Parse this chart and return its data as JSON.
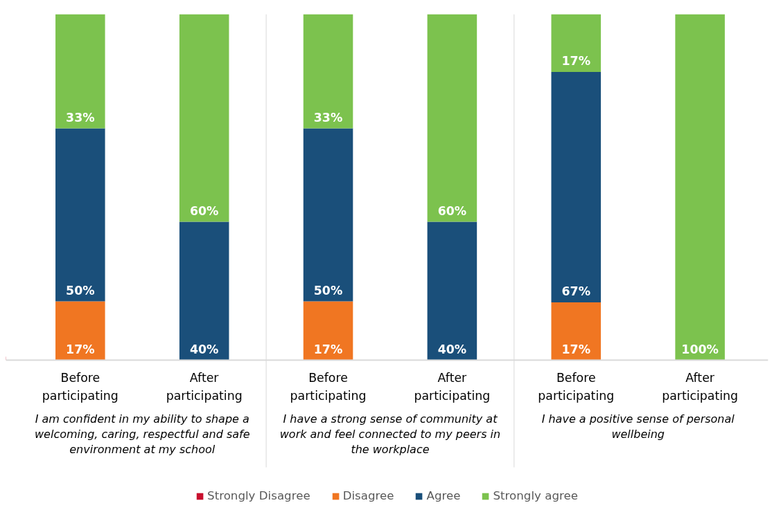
{
  "chart_data": {
    "type": "bar",
    "stacked": true,
    "legend": "bottom",
    "categories": [
      "Before participating",
      "After participating",
      "Before participating",
      "After participating",
      "Before participating",
      "After participating"
    ],
    "series": [
      {
        "name": "Strongly Disagree",
        "color": "#c8102e",
        "values": [
          null,
          null,
          null,
          null,
          null,
          null
        ],
        "value_labels": [
          null,
          null,
          null,
          null,
          null,
          null
        ]
      },
      {
        "name": "Disagree",
        "color": "#f07622",
        "values": [
          17,
          null,
          17,
          null,
          16.7,
          null
        ],
        "value_labels": [
          "17%",
          null,
          "17%",
          null,
          "17%",
          null
        ]
      },
      {
        "name": "Agree",
        "color": "#1a4f7a",
        "values": [
          50,
          40,
          50,
          40,
          66.6,
          null
        ],
        "value_labels": [
          "50%",
          "40%",
          "50%",
          "40%",
          "67%",
          null
        ]
      },
      {
        "name": "Strongly agree",
        "color": "#7cc24e",
        "values": [
          33,
          60,
          33,
          60,
          16.7,
          100
        ],
        "value_labels": [
          "33%",
          "60%",
          "33%",
          "60%",
          "17%",
          "100%"
        ]
      }
    ],
    "annotations": [
      "I am confident in my ability to shape a welcoming, caring, respectful and safe environment at my school",
      "I have a strong sense of community at work and feel connected to my peers in the workplace",
      "I have a positive sense of personal wellbeing"
    ]
  }
}
